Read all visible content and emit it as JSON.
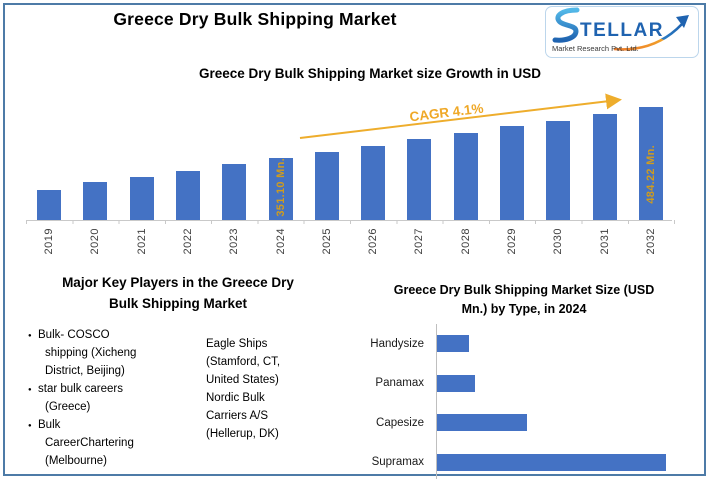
{
  "page": {
    "title": "Greece Dry Bulk Shipping Market"
  },
  "logo": {
    "brand_s": "S",
    "brand_rest": "TELLAR",
    "tagline": "Market Research Pvt. Ltd.",
    "brand_color": "#1f63b0",
    "accent_color": "#f07d2a"
  },
  "growth_chart": {
    "title": "Greece Dry Bulk Shipping Market size Growth in USD",
    "cagr_label": "CAGR 4.1%",
    "bar_color": "#4472c4",
    "label_color": "#d09c1d",
    "data_labels": {
      "2024": "351.10 Mn.",
      "2032": "484.22 Mn."
    }
  },
  "key_players": {
    "heading_line1": "Major Key Players in the Greece Dry",
    "heading_line2": "Bulk Shipping Market",
    "column1": [
      "Bulk- COSCO\nshipping (Xicheng\nDistrict, Beijing)",
      "star bulk careers\n(Greece)",
      "Bulk\nCareerChartering\n(Melbourne)"
    ],
    "column2": [
      "Eagle Ships\n(Stamford, CT,\nUnited States)",
      "Nordic Bulk\nCarriers A/S\n(Hellerup, DK)"
    ]
  },
  "type_chart": {
    "title_line1": "Greece Dry Bulk Shipping Market Size (USD",
    "title_line2": "Mn.) by Type, in 2024",
    "bar_color": "#4472c4"
  },
  "chart_data": [
    {
      "type": "bar",
      "title": "Greece Dry Bulk Shipping Market size Growth in USD",
      "unit": "USD Mn.",
      "categories": [
        "2019",
        "2020",
        "2021",
        "2022",
        "2023",
        "2024",
        "2025",
        "2026",
        "2027",
        "2028",
        "2029",
        "2030",
        "2031",
        "2032"
      ],
      "values": [
        269,
        288,
        301,
        319,
        335,
        351.1,
        368,
        384,
        400,
        418,
        436,
        449,
        465,
        484.22
      ],
      "labeled_points": {
        "2024": 351.1,
        "2032": 484.22
      },
      "cagr_pct": 4.1,
      "ylim": [
        190,
        500
      ],
      "gridlines": false,
      "legend": "none"
    },
    {
      "type": "bar",
      "orientation": "horizontal",
      "title": "Greece Dry Bulk Shipping Market Size (USD Mn.) by Type, in 2024",
      "unit": "USD Mn.",
      "categories": [
        "Handysize",
        "Panamax",
        "Capesize",
        "Supramax"
      ],
      "values": [
        29,
        34,
        81,
        207
      ],
      "xlim": [
        0,
        235
      ],
      "gridlines": false,
      "legend": "none"
    }
  ]
}
